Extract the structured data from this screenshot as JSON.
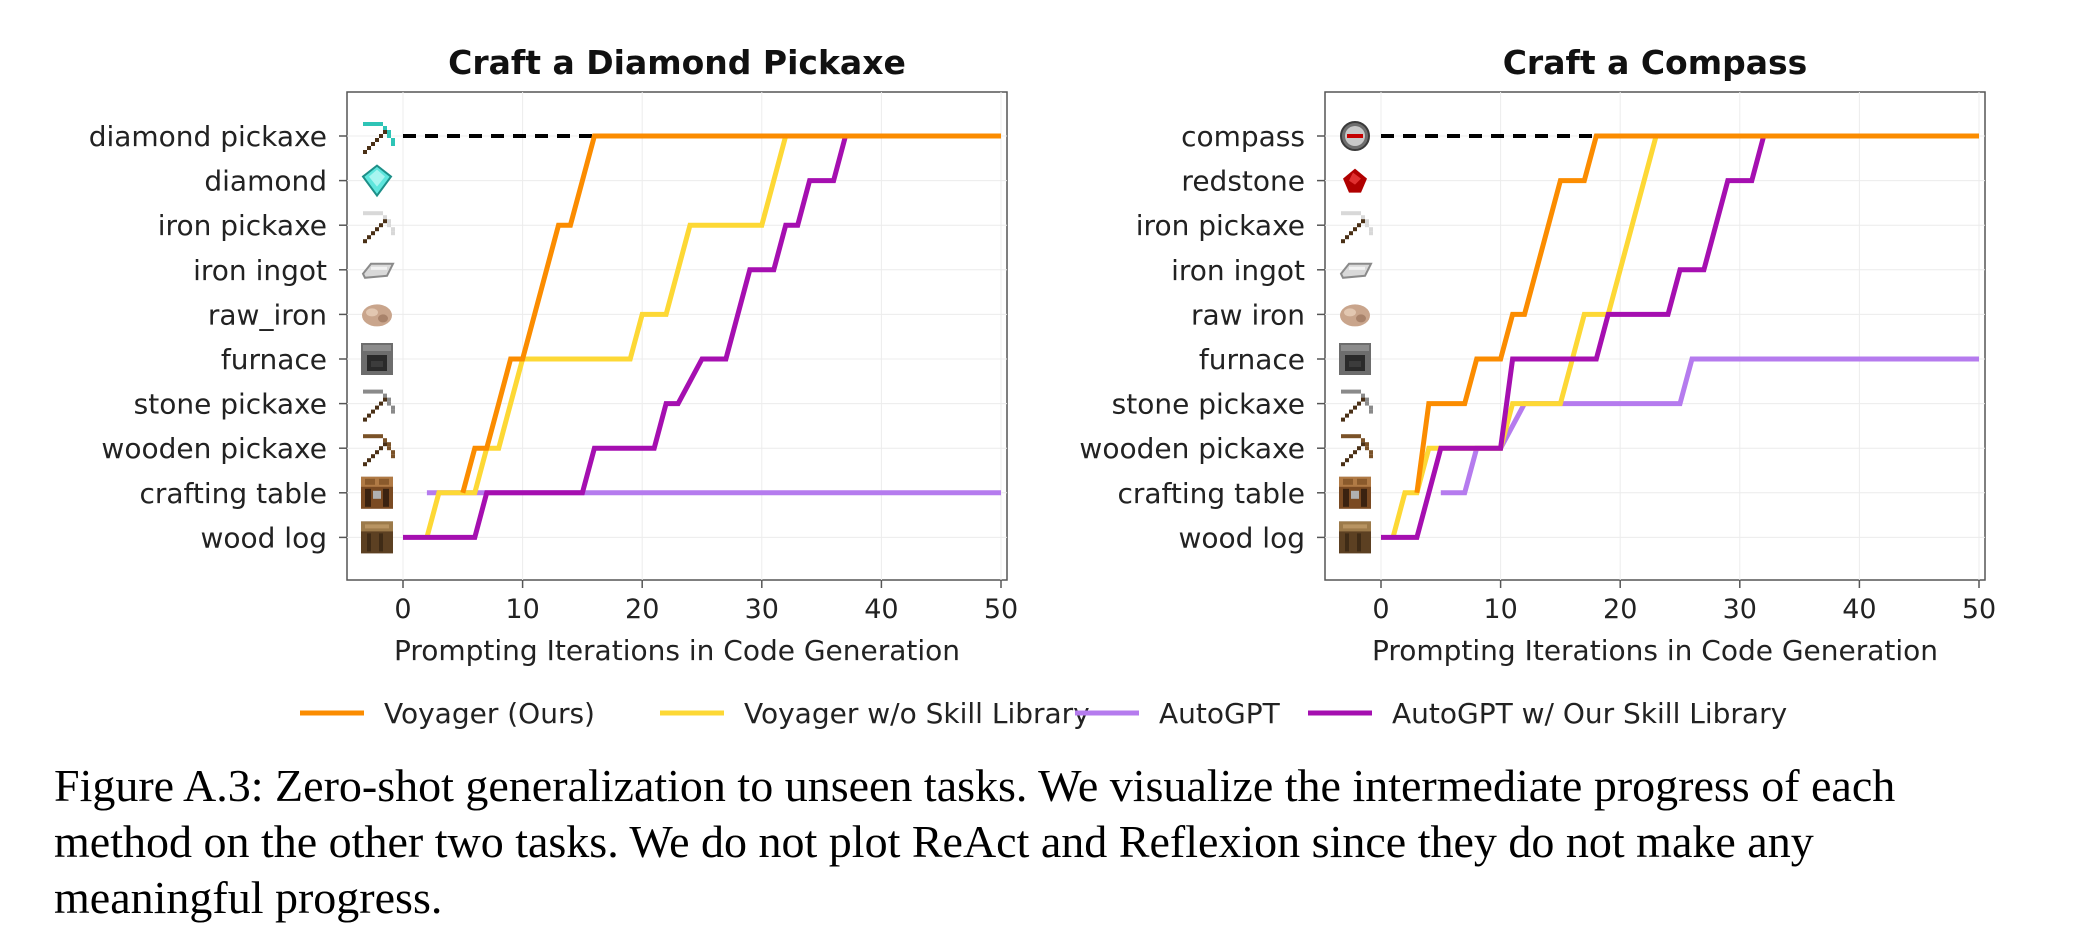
{
  "chart_data": [
    {
      "type": "line",
      "title": "Craft a Diamond Pickaxe",
      "xlabel": "Prompting Iterations in Code Generation",
      "ylabel": "",
      "xlim": [
        -5,
        50
      ],
      "xticks": [
        0,
        10,
        20,
        30,
        40,
        50
      ],
      "categories": [
        "wood log",
        "crafting table",
        "wooden pickaxe",
        "stone pickaxe",
        "furnace",
        "raw_iron",
        "iron ingot",
        "iron pickaxe",
        "diamond",
        "diamond pickaxe"
      ],
      "category_icons": [
        "wood-log-icon",
        "crafting-table-icon",
        "wooden-pickaxe-icon",
        "stone-pickaxe-icon",
        "furnace-icon",
        "raw-iron-icon",
        "iron-ingot-icon",
        "iron-pickaxe-icon",
        "diamond-icon",
        "diamond-pickaxe-icon"
      ],
      "target": {
        "name": "diamond pickaxe",
        "x": [
          0,
          16
        ],
        "style": "dashed"
      },
      "grid": true,
      "series": [
        {
          "name": "AutoGPT",
          "color": "#b57bee",
          "points": [
            [
              2,
              1
            ],
            [
              50,
              1
            ]
          ]
        },
        {
          "name": "Voyager w/o Skill Library",
          "color": "#fdd835",
          "points": [
            [
              2,
              0
            ],
            [
              3,
              1
            ],
            [
              6,
              1
            ],
            [
              7,
              2
            ],
            [
              8,
              2
            ],
            [
              9,
              3
            ],
            [
              10,
              4
            ],
            [
              19,
              4
            ],
            [
              20,
              5
            ],
            [
              22,
              5
            ],
            [
              24,
              7
            ],
            [
              30,
              7
            ],
            [
              32,
              9
            ],
            [
              37,
              9
            ],
            [
              50,
              9
            ]
          ]
        },
        {
          "name": "AutoGPT w/ Our Skill Library",
          "color": "#a50fb0",
          "points": [
            [
              0,
              0
            ],
            [
              6,
              0
            ],
            [
              7,
              1
            ],
            [
              15,
              1
            ],
            [
              16,
              2
            ],
            [
              21,
              2
            ],
            [
              22,
              3
            ],
            [
              23,
              3
            ],
            [
              25,
              4
            ],
            [
              27,
              4
            ],
            [
              29,
              6
            ],
            [
              31,
              6
            ],
            [
              32,
              7
            ],
            [
              33,
              7
            ],
            [
              34,
              8
            ],
            [
              36,
              8
            ],
            [
              37,
              9
            ],
            [
              50,
              9
            ]
          ]
        },
        {
          "name": "Voyager (Ours)",
          "color": "#fb8c00",
          "points": [
            [
              5,
              1
            ],
            [
              6,
              2
            ],
            [
              7,
              2
            ],
            [
              8,
              3
            ],
            [
              9,
              4
            ],
            [
              10,
              4
            ],
            [
              11,
              5
            ],
            [
              13,
              7
            ],
            [
              14,
              7
            ],
            [
              15,
              8
            ],
            [
              16,
              9
            ],
            [
              50,
              9
            ]
          ]
        }
      ]
    },
    {
      "type": "line",
      "title": "Craft a Compass",
      "xlabel": "Prompting Iterations in Code Generation",
      "ylabel": "",
      "xlim": [
        -5,
        50
      ],
      "xticks": [
        0,
        10,
        20,
        30,
        40,
        50
      ],
      "categories": [
        "wood log",
        "crafting table",
        "wooden pickaxe",
        "stone pickaxe",
        "furnace",
        "raw iron",
        "iron ingot",
        "iron pickaxe",
        "redstone",
        "compass"
      ],
      "category_icons": [
        "wood-log-icon",
        "crafting-table-icon",
        "wooden-pickaxe-icon",
        "stone-pickaxe-icon",
        "furnace-icon",
        "raw-iron-icon",
        "iron-ingot-icon",
        "iron-pickaxe-icon",
        "redstone-icon",
        "compass-icon"
      ],
      "target": {
        "name": "compass",
        "x": [
          0,
          18
        ],
        "style": "dashed"
      },
      "grid": true,
      "series": [
        {
          "name": "AutoGPT",
          "color": "#b57bee",
          "points": [
            [
              5,
              1
            ],
            [
              7,
              1
            ],
            [
              8,
              2
            ],
            [
              10,
              2
            ],
            [
              12,
              3
            ],
            [
              25,
              3
            ],
            [
              26,
              4
            ],
            [
              50,
              4
            ]
          ]
        },
        {
          "name": "Voyager w/o Skill Library",
          "color": "#fdd835",
          "points": [
            [
              1,
              0
            ],
            [
              2,
              1
            ],
            [
              3,
              1
            ],
            [
              4,
              2
            ],
            [
              10,
              2
            ],
            [
              11,
              3
            ],
            [
              15,
              3
            ],
            [
              16,
              4
            ],
            [
              17,
              5
            ],
            [
              19,
              5
            ],
            [
              23,
              9
            ],
            [
              50,
              9
            ]
          ]
        },
        {
          "name": "AutoGPT w/ Our Skill Library",
          "color": "#a50fb0",
          "points": [
            [
              0,
              0
            ],
            [
              3,
              0
            ],
            [
              5,
              2
            ],
            [
              10,
              2
            ],
            [
              11,
              4
            ],
            [
              18,
              4
            ],
            [
              19,
              5
            ],
            [
              24,
              5
            ],
            [
              25,
              6
            ],
            [
              27,
              6
            ],
            [
              29,
              8
            ],
            [
              31,
              8
            ],
            [
              32,
              9
            ],
            [
              50,
              9
            ]
          ]
        },
        {
          "name": "Voyager (Ours)",
          "color": "#fb8c00",
          "points": [
            [
              3,
              1
            ],
            [
              4,
              3
            ],
            [
              7,
              3
            ],
            [
              8,
              4
            ],
            [
              10,
              4
            ],
            [
              11,
              5
            ],
            [
              12,
              5
            ],
            [
              15,
              8
            ],
            [
              17,
              8
            ],
            [
              18,
              9
            ],
            [
              50,
              9
            ]
          ]
        }
      ]
    }
  ],
  "legend": {
    "position": "bottom-center",
    "entries": [
      {
        "label": "Voyager (Ours)",
        "color": "#fb8c00"
      },
      {
        "label": "Voyager w/o Skill Library",
        "color": "#fdd835"
      },
      {
        "label": "AutoGPT",
        "color": "#b57bee"
      },
      {
        "label": "AutoGPT w/ Our Skill Library",
        "color": "#a50fb0"
      }
    ]
  },
  "caption": "Figure A.3: Zero-shot generalization to unseen tasks. We visualize the intermediate progress of each method on the other two tasks. We do not plot ReAct and Reflexion since they do not make any meaningful progress."
}
